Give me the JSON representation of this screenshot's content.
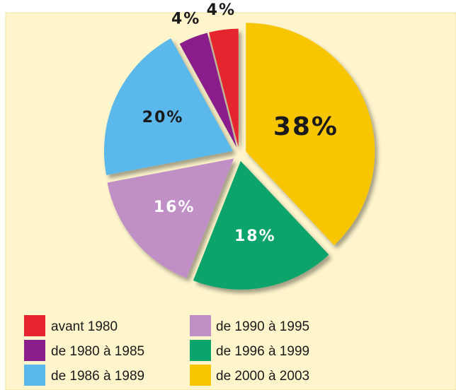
{
  "chart_data": {
    "type": "pie",
    "categories": [
      "avant 1980",
      "de 1980 à 1985",
      "de 1986 à 1989",
      "de 1990 à 1995",
      "de 1996 à 1999",
      "de 2000 à 2003"
    ],
    "values": [
      4,
      4,
      20,
      16,
      18,
      38
    ],
    "value_labels": [
      "4%",
      "4%",
      "20%",
      "16%",
      "18%",
      "38%"
    ],
    "colors": [
      "#e6252f",
      "#8b1e8c",
      "#5ab8ea",
      "#bf8fc6",
      "#0aa46c",
      "#f8c600"
    ],
    "legend": "bottom"
  }
}
